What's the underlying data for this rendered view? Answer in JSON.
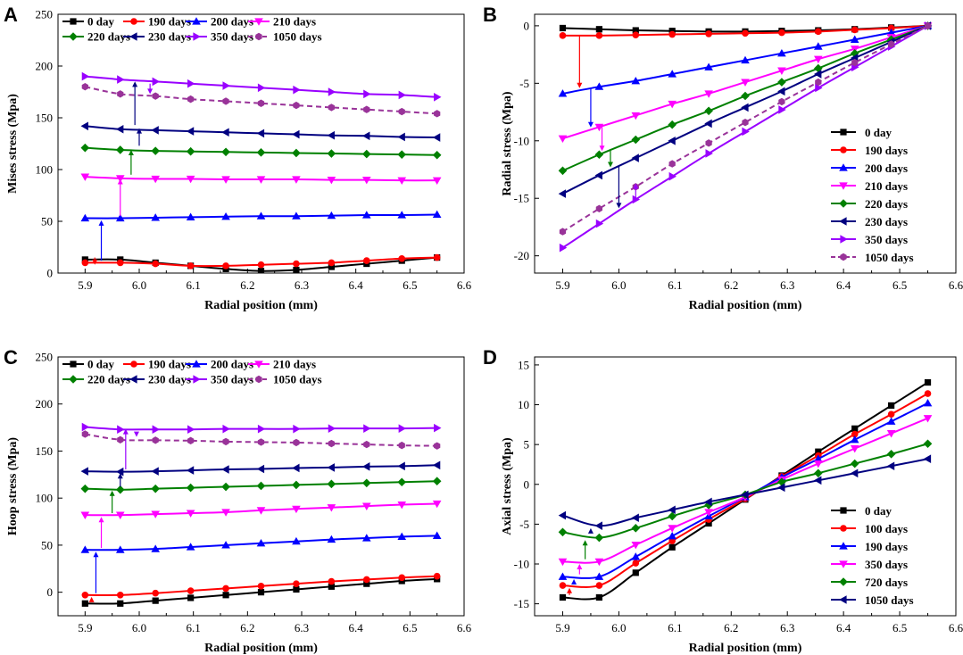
{
  "chart_data": [
    {
      "panel": "A",
      "type": "line",
      "xlabel": "Radial position (mm)",
      "ylabel": "Mises stress (Mpa)",
      "xlim": [
        5.85,
        6.6
      ],
      "ylim": [
        0,
        250
      ],
      "xticks": [
        "5.9",
        "6.0",
        "6.1",
        "6.2",
        "6.3",
        "6.4",
        "6.5",
        "6.6"
      ],
      "yticks": [
        "0",
        "50",
        "100",
        "150",
        "200",
        "250"
      ],
      "legend_position": "top-left",
      "x": [
        5.9,
        5.965,
        6.03,
        6.095,
        6.16,
        6.225,
        6.29,
        6.355,
        6.42,
        6.485,
        6.55
      ],
      "series": [
        {
          "name": "0 day",
          "color": "#000000",
          "marker": "square",
          "dashed": false,
          "values": [
            13,
            13,
            10,
            7,
            4,
            2,
            3,
            6,
            9,
            12,
            15
          ]
        },
        {
          "name": "190 days",
          "color": "#ff0000",
          "marker": "circle",
          "dashed": false,
          "values": [
            10,
            10,
            9,
            7,
            7,
            8,
            9,
            10,
            12,
            14,
            15
          ]
        },
        {
          "name": "200 days",
          "color": "#0000ff",
          "marker": "triangle-up",
          "dashed": false,
          "values": [
            53,
            53,
            53.5,
            54,
            54.5,
            55,
            55,
            55.5,
            56,
            56,
            56.5
          ]
        },
        {
          "name": "210 days",
          "color": "#ff00ff",
          "marker": "triangle-down",
          "dashed": false,
          "values": [
            93,
            91.5,
            91,
            91,
            90.5,
            90.5,
            90.5,
            90,
            90,
            89.5,
            89.5
          ]
        },
        {
          "name": "220 days",
          "color": "#008000",
          "marker": "diamond",
          "dashed": false,
          "values": [
            121,
            119,
            118,
            117.5,
            117,
            116.5,
            116,
            115.5,
            115,
            114.5,
            114
          ]
        },
        {
          "name": "230 days",
          "color": "#000080",
          "marker": "triangle-left",
          "dashed": false,
          "values": [
            142,
            139,
            138,
            137,
            136,
            135,
            134,
            133,
            132.5,
            131.5,
            131
          ]
        },
        {
          "name": "350 days",
          "color": "#9900ff",
          "marker": "triangle-right",
          "dashed": false,
          "values": [
            190,
            187,
            185,
            183,
            181,
            179,
            177,
            175,
            173,
            172,
            170
          ]
        },
        {
          "name": "1050 days",
          "color": "#993399",
          "marker": "hexagon",
          "dashed": true,
          "values": [
            180,
            173,
            171,
            168,
            166,
            164,
            162,
            160,
            158,
            156,
            154
          ]
        }
      ]
    },
    {
      "panel": "B",
      "type": "line",
      "xlabel": "Radial position (mm)",
      "ylabel": "Radial stress (Mpa)",
      "xlim": [
        5.85,
        6.6
      ],
      "ylim": [
        -21.5,
        1
      ],
      "xticks": [
        "5.9",
        "6.0",
        "6.1",
        "6.2",
        "6.3",
        "6.4",
        "6.5",
        "6.6"
      ],
      "yticks": [
        "0",
        "-5",
        "-10",
        "-15",
        "-20"
      ],
      "legend_position": "bottom-right",
      "x": [
        5.9,
        5.965,
        6.03,
        6.095,
        6.16,
        6.225,
        6.29,
        6.355,
        6.42,
        6.485,
        6.55
      ],
      "series": [
        {
          "name": "0 day",
          "color": "#000000",
          "marker": "square",
          "dashed": false,
          "values": [
            -0.2,
            -0.3,
            -0.4,
            -0.45,
            -0.5,
            -0.5,
            -0.45,
            -0.4,
            -0.3,
            -0.15,
            0
          ]
        },
        {
          "name": "190 days",
          "color": "#ff0000",
          "marker": "circle",
          "dashed": false,
          "values": [
            -0.85,
            -0.85,
            -0.8,
            -0.75,
            -0.7,
            -0.65,
            -0.6,
            -0.5,
            -0.35,
            -0.2,
            0
          ]
        },
        {
          "name": "200 days",
          "color": "#0000ff",
          "marker": "triangle-up",
          "dashed": false,
          "values": [
            -5.9,
            -5.3,
            -4.8,
            -4.2,
            -3.6,
            -3.0,
            -2.4,
            -1.8,
            -1.2,
            -0.6,
            0
          ]
        },
        {
          "name": "210 days",
          "color": "#ff00ff",
          "marker": "triangle-down",
          "dashed": false,
          "values": [
            -9.8,
            -8.8,
            -7.8,
            -6.8,
            -5.9,
            -4.9,
            -3.9,
            -2.9,
            -2.0,
            -1.0,
            0
          ]
        },
        {
          "name": "220 days",
          "color": "#008000",
          "marker": "diamond",
          "dashed": false,
          "values": [
            -12.6,
            -11.2,
            -9.9,
            -8.6,
            -7.4,
            -6.1,
            -4.9,
            -3.7,
            -2.4,
            -1.2,
            0
          ]
        },
        {
          "name": "230 days",
          "color": "#000080",
          "marker": "triangle-left",
          "dashed": false,
          "values": [
            -14.6,
            -13.0,
            -11.5,
            -10.0,
            -8.5,
            -7.1,
            -5.7,
            -4.2,
            -2.8,
            -1.4,
            0
          ]
        },
        {
          "name": "350 days",
          "color": "#9900ff",
          "marker": "triangle-right",
          "dashed": false,
          "values": [
            -19.3,
            -17.2,
            -15.1,
            -13.1,
            -11.1,
            -9.2,
            -7.3,
            -5.4,
            -3.6,
            -1.8,
            0
          ]
        },
        {
          "name": "1050 days",
          "color": "#993399",
          "marker": "hexagon",
          "dashed": true,
          "values": [
            -17.9,
            -15.9,
            -14.0,
            -12.0,
            -10.2,
            -8.4,
            -6.6,
            -4.9,
            -3.2,
            -1.6,
            0
          ]
        }
      ]
    },
    {
      "panel": "C",
      "type": "line",
      "xlabel": "Radial position (mm)",
      "ylabel": "Hoop stress (Mpa)",
      "xlim": [
        5.85,
        6.6
      ],
      "ylim": [
        -25,
        250
      ],
      "xticks": [
        "5.9",
        "6.0",
        "6.1",
        "6.2",
        "6.3",
        "6.4",
        "6.5",
        "6.6"
      ],
      "yticks": [
        "0",
        "50",
        "100",
        "150",
        "200",
        "250"
      ],
      "legend_position": "top-left",
      "x": [
        5.9,
        5.965,
        6.03,
        6.095,
        6.16,
        6.225,
        6.29,
        6.355,
        6.42,
        6.485,
        6.55
      ],
      "series": [
        {
          "name": "0 day",
          "color": "#000000",
          "marker": "square",
          "dashed": false,
          "values": [
            -12,
            -12,
            -9,
            -6,
            -3,
            0,
            3,
            6,
            9,
            12,
            14
          ]
        },
        {
          "name": "190 days",
          "color": "#ff0000",
          "marker": "circle",
          "dashed": false,
          "values": [
            -3,
            -3,
            -1,
            1.5,
            4,
            6.5,
            9,
            11.5,
            13.5,
            15.5,
            17
          ]
        },
        {
          "name": "200 days",
          "color": "#0000ff",
          "marker": "triangle-up",
          "dashed": false,
          "values": [
            45,
            45,
            46,
            48,
            50,
            52,
            54,
            56,
            57.5,
            59,
            60
          ]
        },
        {
          "name": "210 days",
          "color": "#ff00ff",
          "marker": "triangle-down",
          "dashed": false,
          "values": [
            82,
            82,
            83,
            84,
            85,
            87,
            88.5,
            90,
            91.5,
            93,
            94
          ]
        },
        {
          "name": "220 days",
          "color": "#008000",
          "marker": "diamond",
          "dashed": false,
          "values": [
            110,
            109,
            110,
            111,
            112,
            113,
            114,
            115,
            116,
            117,
            118
          ]
        },
        {
          "name": "230 days",
          "color": "#000080",
          "marker": "triangle-left",
          "dashed": false,
          "values": [
            128.5,
            128,
            128.5,
            129.5,
            130.5,
            131,
            132,
            132.5,
            133.5,
            134,
            135
          ]
        },
        {
          "name": "350 days",
          "color": "#9900ff",
          "marker": "triangle-right",
          "dashed": false,
          "values": [
            175.5,
            173,
            173,
            173,
            173.5,
            173.5,
            173.5,
            174,
            174,
            174,
            174.5
          ]
        },
        {
          "name": "1050 days",
          "color": "#993399",
          "marker": "hexagon",
          "dashed": true,
          "values": [
            168,
            162,
            161.5,
            161,
            160,
            159.5,
            159,
            158,
            157,
            156,
            155.5
          ]
        }
      ]
    },
    {
      "panel": "D",
      "type": "line",
      "xlabel": "Radial position (mm)",
      "ylabel": "Axial stress (Mpa)",
      "xlim": [
        5.85,
        6.6
      ],
      "ylim": [
        -16.5,
        16
      ],
      "xticks": [
        "5.9",
        "6.0",
        "6.1",
        "6.2",
        "6.3",
        "6.4",
        "6.5",
        "6.6"
      ],
      "yticks": [
        "15",
        "10",
        "5",
        "0",
        "-5",
        "-10",
        "-15"
      ],
      "legend_position": "bottom-right",
      "x": [
        5.9,
        5.965,
        6.03,
        6.095,
        6.16,
        6.225,
        6.29,
        6.355,
        6.42,
        6.485,
        6.55
      ],
      "series": [
        {
          "name": "0 day",
          "color": "#000000",
          "marker": "square",
          "dashed": false,
          "values": [
            -14.2,
            -14.2,
            -11.1,
            -7.9,
            -4.9,
            -1.9,
            1.1,
            4.1,
            7.0,
            9.9,
            12.8
          ]
        },
        {
          "name": "100 days",
          "color": "#ff0000",
          "marker": "circle",
          "dashed": false,
          "values": [
            -12.7,
            -12.7,
            -9.9,
            -7.1,
            -4.4,
            -1.8,
            1.0,
            3.6,
            6.3,
            8.8,
            11.4
          ]
        },
        {
          "name": "190 days",
          "color": "#0000ff",
          "marker": "triangle-up",
          "dashed": false,
          "values": [
            -11.6,
            -11.6,
            -9.1,
            -6.5,
            -4.0,
            -1.6,
            0.9,
            3.2,
            5.6,
            7.9,
            10.2
          ]
        },
        {
          "name": "350 days",
          "color": "#ff00ff",
          "marker": "triangle-down",
          "dashed": false,
          "values": [
            -9.7,
            -9.7,
            -7.6,
            -5.5,
            -3.5,
            -1.6,
            0.6,
            2.6,
            4.5,
            6.4,
            8.3
          ]
        },
        {
          "name": "720 days",
          "color": "#008000",
          "marker": "diamond",
          "dashed": false,
          "values": [
            -6.0,
            -6.7,
            -5.5,
            -4.0,
            -2.6,
            -1.3,
            0.3,
            1.4,
            2.6,
            3.8,
            5.1
          ]
        },
        {
          "name": "1050 days",
          "color": "#000080",
          "marker": "triangle-left",
          "dashed": false,
          "values": [
            -3.9,
            -5.2,
            -4.2,
            -3.2,
            -2.2,
            -1.3,
            -0.4,
            0.5,
            1.4,
            2.3,
            3.2
          ]
        }
      ]
    }
  ]
}
